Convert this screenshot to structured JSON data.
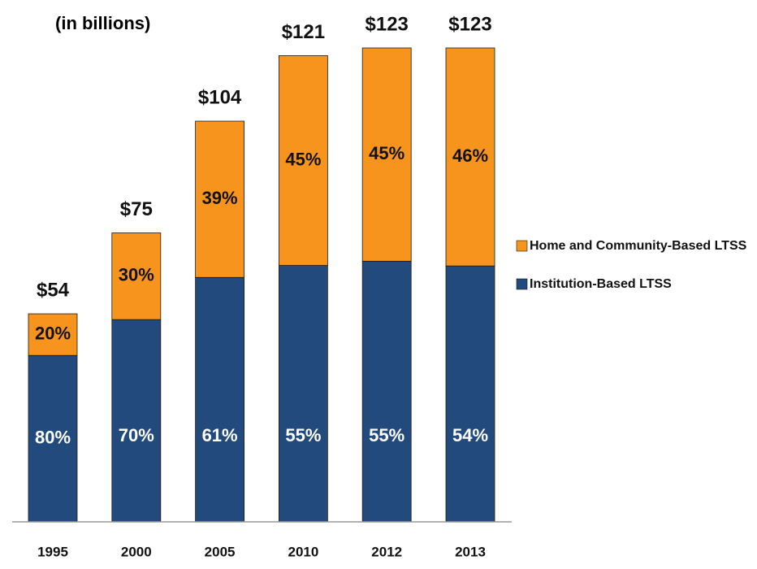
{
  "chart_data": {
    "type": "stacked_bar",
    "subtitle": "(in billions)",
    "categories": [
      "1995",
      "2000",
      "2005",
      "2010",
      "2012",
      "2013"
    ],
    "totals": {
      "values": [
        54,
        75,
        104,
        121,
        123,
        123
      ],
      "value_labels": [
        "$54",
        "$75",
        "$104",
        "$121",
        "$123",
        "$123"
      ]
    },
    "series": [
      {
        "name": "Institution-Based LTSS",
        "color": "#234a7c",
        "values": [
          80,
          70,
          61,
          55,
          55,
          54
        ],
        "value_labels": [
          "80%",
          "70%",
          "61%",
          "55%",
          "55%",
          "54%"
        ]
      },
      {
        "name": "Home and Community-Based LTSS",
        "color": "#f7941d",
        "values": [
          20,
          30,
          39,
          45,
          45,
          46
        ],
        "value_labels": [
          "20%",
          "30%",
          "39%",
          "45%",
          "45%",
          "46%"
        ]
      }
    ],
    "legend": "right"
  }
}
